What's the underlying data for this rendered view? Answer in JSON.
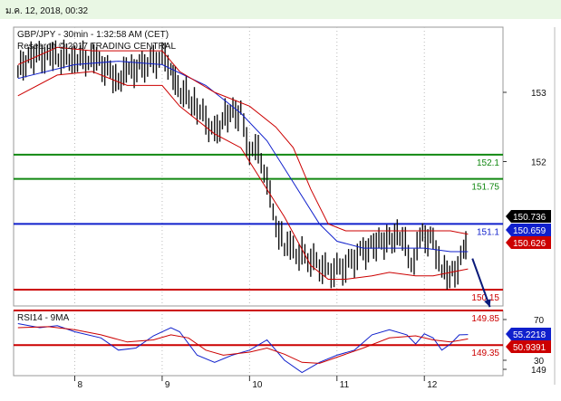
{
  "header_date": "ม.ค. 12, 2018, 00:32",
  "chart_title": "GBP/JPY - 30min - 1:32:58 AM (CET)",
  "chart_subtitle": "Research © 2017 TRADING CENTRAL",
  "rsi_title": "RSI14 - 9MA",
  "colors": {
    "price": "#111111",
    "bollinger": "#cc0000",
    "ma": "#1020cc",
    "support": "#cc0000",
    "resistance": "#118811",
    "pivot": "#1020cc",
    "grid": "#bbbbbb",
    "rsi": "#1020cc",
    "rsi_ma": "#cc0000"
  },
  "chart_data": [
    {
      "type": "line",
      "title": "GBP/JPY - 30min - 1:32:58 AM (CET)",
      "ylim": [
        149,
        153.6
      ],
      "y_ticks": [
        149,
        152,
        153
      ],
      "x_tick_labels": [
        "8",
        "9",
        "10",
        "11",
        "12"
      ],
      "x_ticks_day": [
        8,
        9,
        10,
        11,
        12
      ],
      "xlim_day": [
        7.3,
        12.9
      ],
      "grid": false,
      "series": [
        {
          "style": "candlestick",
          "x_day": [
            7.35,
            7.5,
            7.75,
            8.0,
            8.25,
            8.5,
            8.62,
            8.8,
            9.0,
            9.1,
            9.15,
            9.4,
            9.6,
            9.75,
            9.9,
            10.0,
            10.1,
            10.2,
            10.27,
            10.4,
            10.5,
            10.7,
            10.9,
            11.1,
            11.3,
            11.45,
            11.6,
            11.75,
            11.85,
            11.95,
            12.1,
            12.2,
            12.35,
            12.45,
            12.5
          ],
          "y": [
            153.3,
            153.55,
            153.5,
            153.5,
            153.45,
            153.2,
            153.3,
            153.4,
            153.5,
            153.4,
            153.1,
            152.8,
            152.4,
            152.7,
            152.7,
            152.2,
            152.1,
            151.8,
            151.2,
            150.8,
            150.7,
            150.6,
            150.4,
            150.5,
            150.7,
            150.8,
            150.9,
            150.9,
            150.5,
            150.9,
            150.9,
            150.4,
            150.4,
            150.7,
            150.75
          ]
        },
        {
          "name": "Moving average",
          "x_day": [
            7.35,
            8.0,
            8.5,
            9.0,
            9.5,
            9.9,
            10.2,
            10.5,
            10.8,
            11.0,
            11.3,
            11.6,
            11.8,
            12.0,
            12.3,
            12.5
          ],
          "y": [
            153.2,
            153.4,
            153.45,
            153.4,
            153.1,
            152.7,
            152.3,
            151.7,
            151.1,
            150.85,
            150.75,
            150.75,
            150.75,
            150.75,
            150.7,
            150.7
          ]
        },
        {
          "name": "Upper band",
          "x_day": [
            7.35,
            7.8,
            8.2,
            8.6,
            9.0,
            9.2,
            9.6,
            10.0,
            10.3,
            10.5,
            10.7,
            10.9,
            11.1,
            11.3,
            11.6,
            12.0,
            12.3,
            12.5
          ],
          "y": [
            153.4,
            153.65,
            153.6,
            153.6,
            153.6,
            153.3,
            153.0,
            152.8,
            152.5,
            152.2,
            151.6,
            151.1,
            151.0,
            151.0,
            151.0,
            151.0,
            151.0,
            150.95
          ]
        },
        {
          "name": "Lower band",
          "x_day": [
            7.35,
            7.8,
            8.2,
            8.6,
            9.0,
            9.2,
            9.6,
            9.9,
            10.2,
            10.4,
            10.7,
            10.9,
            11.1,
            11.4,
            11.6,
            11.9,
            12.1,
            12.3,
            12.5
          ],
          "y": [
            152.95,
            153.25,
            153.3,
            153.1,
            153.1,
            152.8,
            152.4,
            152.2,
            151.6,
            151.2,
            150.5,
            150.3,
            150.3,
            150.35,
            150.4,
            150.35,
            150.35,
            150.4,
            150.45
          ]
        }
      ],
      "horizontal_levels": [
        {
          "value": 152.1,
          "label": "152.1",
          "kind": "resistance"
        },
        {
          "value": 151.75,
          "label": "151.75",
          "kind": "resistance"
        },
        {
          "value": 151.1,
          "label": "151.1",
          "kind": "pivot"
        },
        {
          "value": 150.15,
          "label": "150.15",
          "kind": "support"
        },
        {
          "value": 149.85,
          "label": "149.85",
          "kind": "support"
        },
        {
          "value": 149.35,
          "label": "149.35",
          "kind": "support"
        }
      ],
      "price_tags": [
        {
          "value": 150.736,
          "label": "150.736",
          "kind": "last"
        },
        {
          "value": 150.659,
          "label": "150.659",
          "kind": "ma"
        },
        {
          "value": 150.626,
          "label": "150.626",
          "kind": "band"
        }
      ],
      "arrow": {
        "from_x_day": 12.55,
        "from_value": 150.6,
        "to_x_day": 12.75,
        "to_value": 149.9,
        "direction": "down"
      }
    },
    {
      "type": "line",
      "title": "RSI14 - 9MA",
      "ylim": [
        10,
        80
      ],
      "y_ticks": [
        30,
        70
      ],
      "series": [
        {
          "name": "RSI14",
          "x_day": [
            7.35,
            7.6,
            7.8,
            8.0,
            8.3,
            8.5,
            8.7,
            8.9,
            9.1,
            9.2,
            9.4,
            9.6,
            9.8,
            10.0,
            10.2,
            10.4,
            10.6,
            10.8,
            11.0,
            11.2,
            11.4,
            11.6,
            11.8,
            11.9,
            12.0,
            12.1,
            12.2,
            12.3,
            12.4,
            12.5
          ],
          "y": [
            66,
            62,
            64,
            58,
            52,
            40,
            42,
            54,
            62,
            58,
            35,
            28,
            35,
            40,
            50,
            30,
            18,
            28,
            35,
            40,
            55,
            60,
            55,
            46,
            56,
            52,
            40,
            46,
            55,
            55.2218
          ]
        },
        {
          "name": "9MA",
          "x_day": [
            7.35,
            7.7,
            8.0,
            8.3,
            8.6,
            8.9,
            9.1,
            9.3,
            9.5,
            9.7,
            10.0,
            10.2,
            10.4,
            10.6,
            10.8,
            11.0,
            11.3,
            11.6,
            11.9,
            12.1,
            12.3,
            12.5
          ],
          "y": [
            62,
            63,
            60,
            55,
            48,
            50,
            55,
            52,
            40,
            35,
            38,
            42,
            36,
            28,
            27,
            33,
            42,
            52,
            54,
            50,
            48,
            50.9391
          ]
        }
      ],
      "price_tags": [
        {
          "value": 55.2218,
          "label": "55.2218",
          "kind": "rsi"
        },
        {
          "value": 50.9391,
          "label": "50.9391",
          "kind": "rsi_ma"
        }
      ]
    }
  ]
}
